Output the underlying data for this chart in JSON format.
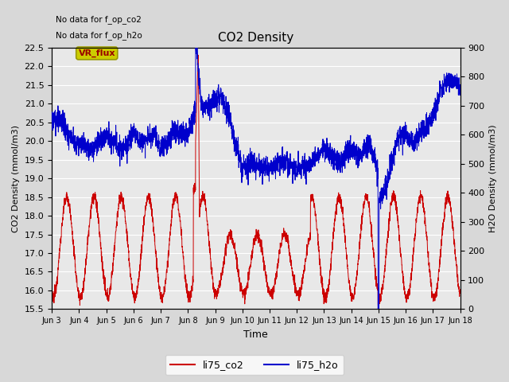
{
  "title": "CO2 Density",
  "xlabel": "Time",
  "ylabel_left": "CO2 Density (mmol/m3)",
  "ylabel_right": "H2O Density (mmol/m3)",
  "ylim_left": [
    15.5,
    22.5
  ],
  "ylim_right": [
    0,
    900
  ],
  "yticks_left": [
    15.5,
    16.0,
    16.5,
    17.0,
    17.5,
    18.0,
    18.5,
    19.0,
    19.5,
    20.0,
    20.5,
    21.0,
    21.5,
    22.0,
    22.5
  ],
  "yticks_right": [
    0,
    100,
    200,
    300,
    400,
    500,
    600,
    700,
    800,
    900
  ],
  "annotations": [
    "No data for f_op_co2",
    "No data for f_op_h2o"
  ],
  "vr_flux_label": "VR_flux",
  "legend_entries": [
    "li75_co2",
    "li75_h2o"
  ],
  "co2_color": "#cc0000",
  "h2o_color": "#0000cc",
  "bg_color": "#e8e8e8",
  "grid_color": "#ffffff",
  "vr_flux_bg": "#cccc00",
  "vr_flux_fg": "#990000",
  "figsize": [
    6.4,
    4.8
  ],
  "dpi": 100,
  "xtick_labels": [
    "Jun 3",
    "Jun 4",
    "Jun 5",
    "Jun 6",
    "Jun 7",
    "Jun 8",
    "Jun 9",
    "Jun 10",
    "Jun 11",
    "Jun 12",
    "Jun 13",
    "Jun 14",
    "Jun 15",
    "Jun 16",
    "Jun 17",
    "Jun 18"
  ]
}
